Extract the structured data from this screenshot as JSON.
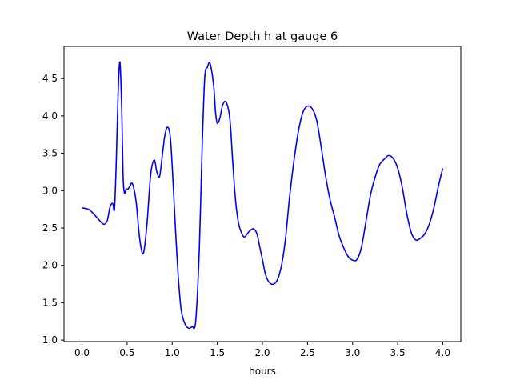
{
  "chart_data": {
    "type": "line",
    "title": "Water Depth h at gauge 6",
    "xlabel": "hours",
    "ylabel": "",
    "xlim": [
      -0.2,
      4.2
    ],
    "ylim": [
      0.98,
      4.93
    ],
    "xticks": [
      0.0,
      0.5,
      1.0,
      1.5,
      2.0,
      2.5,
      3.0,
      3.5,
      4.0
    ],
    "xtick_labels": [
      "0.0",
      "0.5",
      "1.0",
      "1.5",
      "2.0",
      "2.5",
      "3.0",
      "3.5",
      "4.0"
    ],
    "yticks": [
      1.0,
      1.5,
      2.0,
      2.5,
      3.0,
      3.5,
      4.0,
      4.5
    ],
    "ytick_labels": [
      "1.0",
      "1.5",
      "2.0",
      "2.5",
      "3.0",
      "3.5",
      "4.0",
      "4.5"
    ],
    "grid": false,
    "series": [
      {
        "color": "#0000ff",
        "x": [
          0.0,
          0.07,
          0.12,
          0.18,
          0.24,
          0.28,
          0.31,
          0.34,
          0.36,
          0.38,
          0.4,
          0.42,
          0.44,
          0.455,
          0.47,
          0.49,
          0.51,
          0.53,
          0.56,
          0.6,
          0.64,
          0.68,
          0.72,
          0.76,
          0.8,
          0.83,
          0.86,
          0.89,
          0.92,
          0.95,
          0.98,
          1.01,
          1.04,
          1.07,
          1.1,
          1.14,
          1.18,
          1.22,
          1.26,
          1.3,
          1.33,
          1.36,
          1.39,
          1.42,
          1.46,
          1.48,
          1.5,
          1.53,
          1.56,
          1.6,
          1.64,
          1.67,
          1.7,
          1.73,
          1.76,
          1.8,
          1.85,
          1.9,
          1.94,
          1.97,
          2.0,
          2.03,
          2.06,
          2.1,
          2.14,
          2.18,
          2.22,
          2.26,
          2.3,
          2.35,
          2.4,
          2.45,
          2.5,
          2.55,
          2.6,
          2.65,
          2.7,
          2.75,
          2.8,
          2.85,
          2.9,
          2.95,
          3.0,
          3.05,
          3.1,
          3.15,
          3.2,
          3.25,
          3.3,
          3.35,
          3.4,
          3.45,
          3.5,
          3.55,
          3.6,
          3.65,
          3.7,
          3.75,
          3.8,
          3.85,
          3.9,
          3.95,
          4.0
        ],
        "y": [
          2.77,
          2.75,
          2.7,
          2.62,
          2.55,
          2.6,
          2.78,
          2.83,
          2.76,
          3.4,
          4.3,
          4.72,
          4.1,
          3.2,
          2.97,
          3.02,
          3.02,
          3.06,
          3.09,
          2.85,
          2.35,
          2.16,
          2.55,
          3.2,
          3.41,
          3.25,
          3.19,
          3.47,
          3.75,
          3.85,
          3.7,
          3.1,
          2.4,
          1.8,
          1.4,
          1.22,
          1.16,
          1.18,
          1.25,
          2.2,
          3.5,
          4.5,
          4.65,
          4.7,
          4.4,
          4.05,
          3.9,
          3.98,
          4.15,
          4.18,
          3.95,
          3.4,
          2.9,
          2.6,
          2.46,
          2.38,
          2.45,
          2.49,
          2.42,
          2.25,
          2.08,
          1.9,
          1.8,
          1.75,
          1.76,
          1.85,
          2.05,
          2.4,
          2.9,
          3.4,
          3.8,
          4.05,
          4.13,
          4.1,
          3.95,
          3.6,
          3.2,
          2.88,
          2.65,
          2.4,
          2.24,
          2.12,
          2.07,
          2.08,
          2.25,
          2.6,
          2.95,
          3.18,
          3.35,
          3.42,
          3.47,
          3.43,
          3.3,
          3.05,
          2.7,
          2.44,
          2.34,
          2.36,
          2.42,
          2.55,
          2.76,
          3.05,
          3.3
        ]
      }
    ]
  }
}
